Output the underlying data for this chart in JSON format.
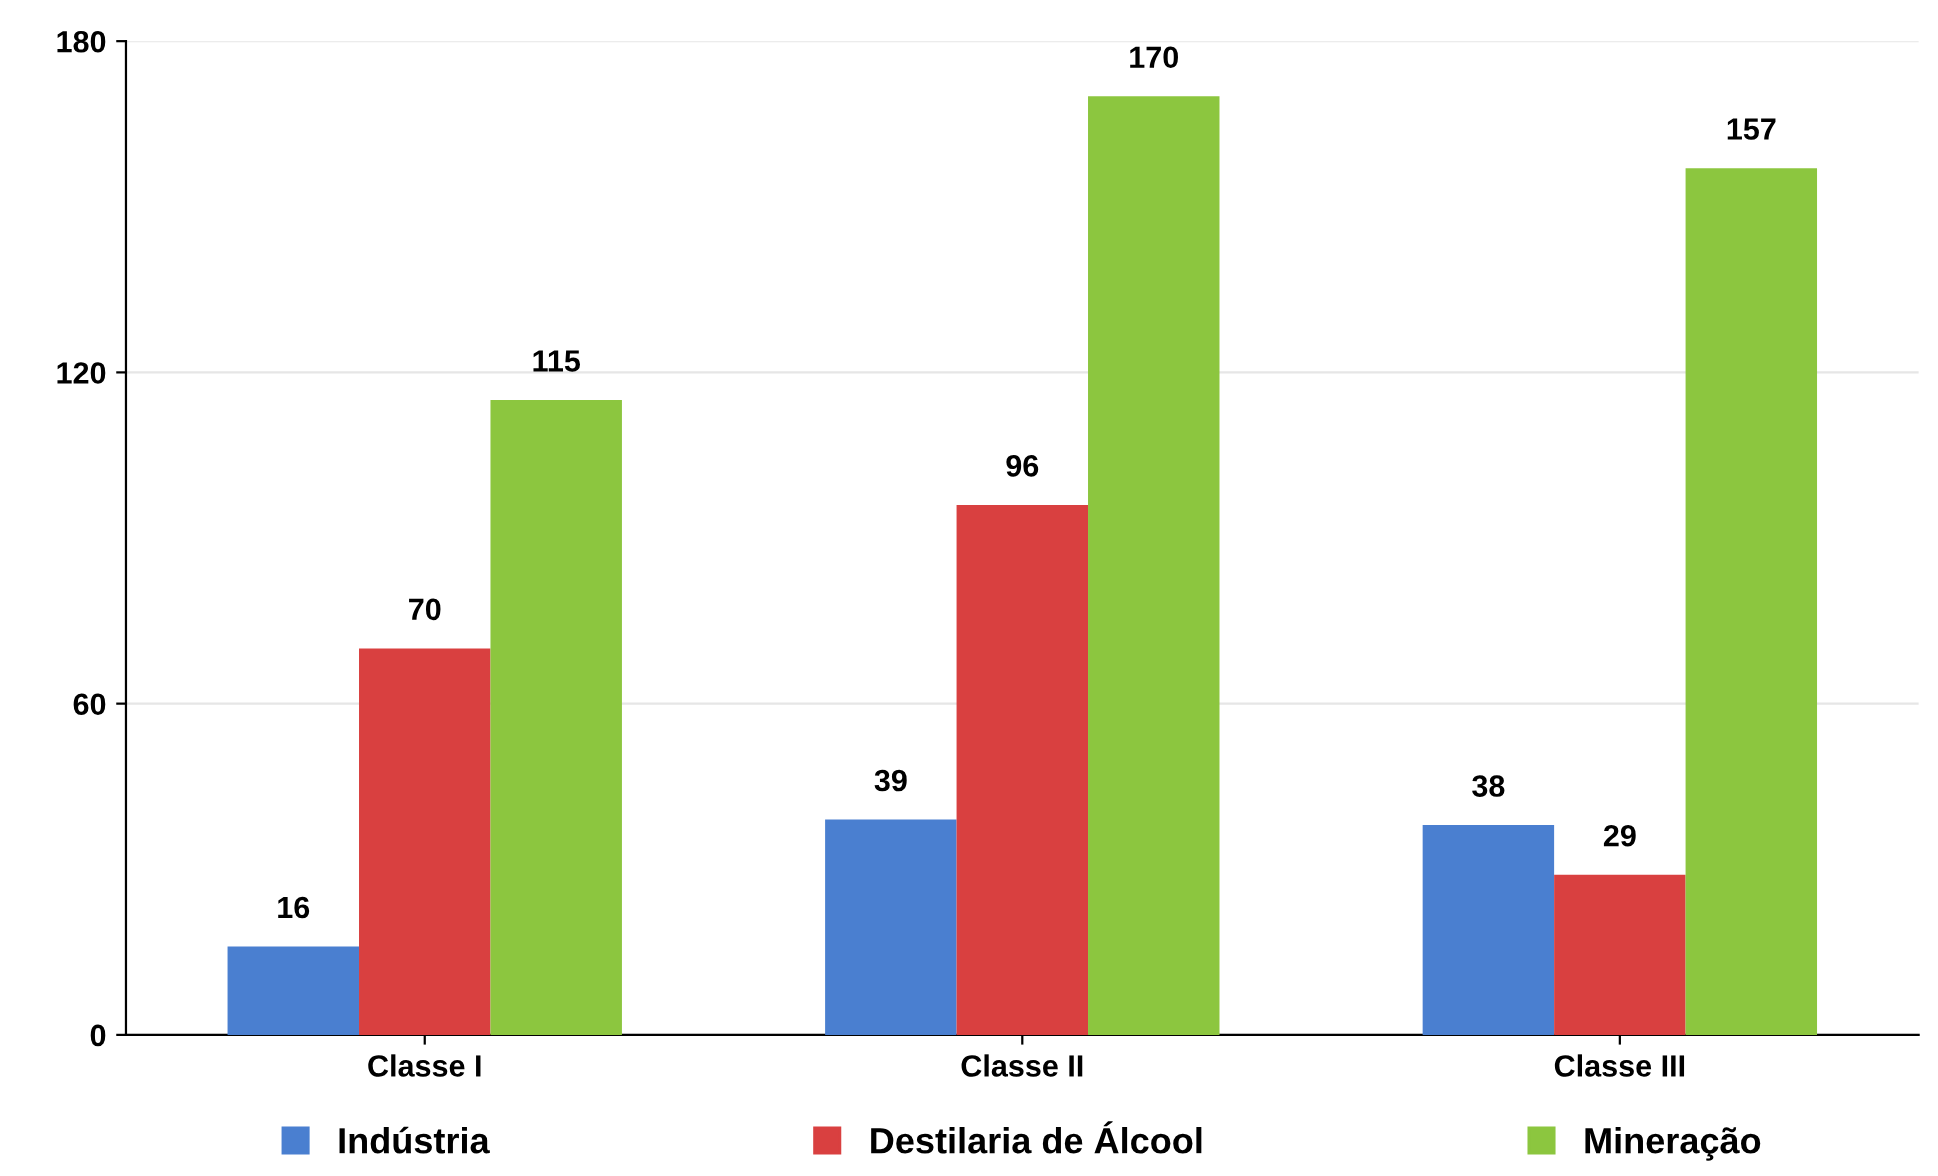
{
  "chart_data": {
    "type": "bar",
    "categories": [
      "Classe I",
      "Classe II",
      "Classe III"
    ],
    "series": [
      {
        "name": "Indústria",
        "color": "#4a7fd0",
        "values": [
          16,
          39,
          38
        ]
      },
      {
        "name": "Destilaria de Álcool",
        "color": "#d94040",
        "values": [
          70,
          96,
          29
        ]
      },
      {
        "name": "Mineração",
        "color": "#8cc63f",
        "values": [
          115,
          170,
          157
        ]
      }
    ],
    "ylim": [
      0,
      180
    ],
    "yticks": [
      0,
      60,
      120,
      180
    ],
    "grid": "y",
    "legend": "bottom",
    "data_labels": true
  }
}
